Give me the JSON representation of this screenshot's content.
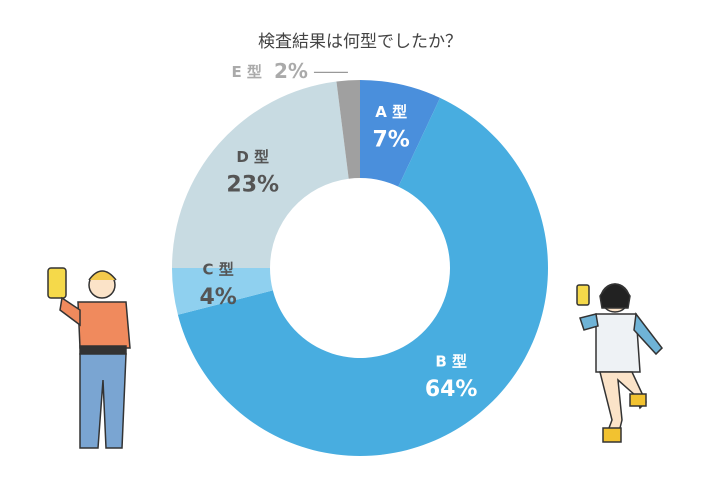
{
  "chart_data": {
    "type": "donut",
    "title": "検査結果は何型でしたか？",
    "categories": [
      "A 型",
      "B 型",
      "C 型",
      "D 型",
      "E 型"
    ],
    "values": [
      7,
      64,
      4,
      23,
      2
    ],
    "value_labels": [
      "7%",
      "64%",
      "4%",
      "23%",
      "2%"
    ],
    "colors": [
      "#4a8fdc",
      "#48ade0",
      "#8fd0ef",
      "#c8dbe2",
      "#a0a0a0"
    ]
  }
}
